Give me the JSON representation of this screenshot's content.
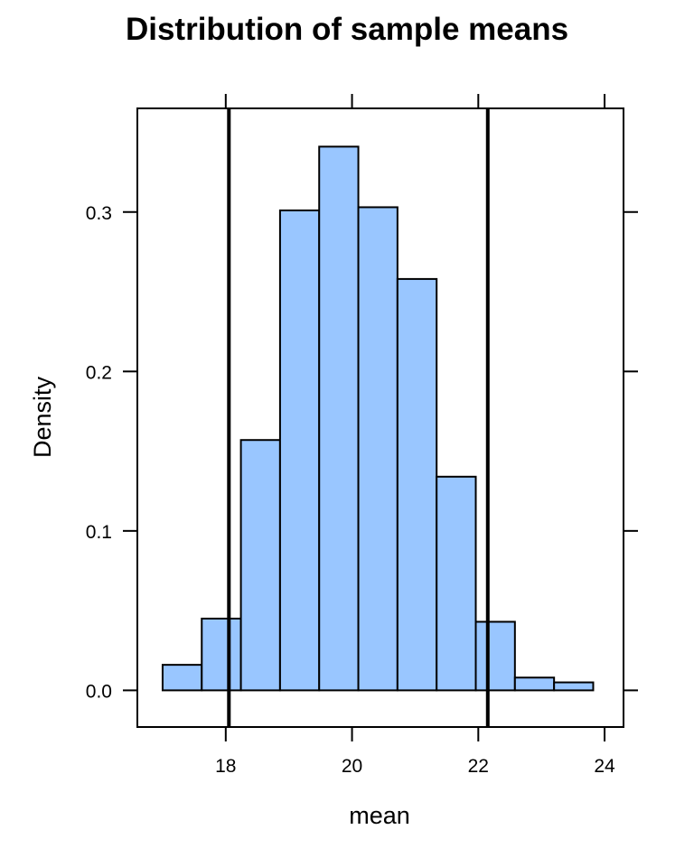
{
  "chart_data": {
    "type": "bar",
    "title": "Distribution of sample means",
    "xlabel": "mean",
    "ylabel": "Density",
    "xlim": [
      16.6,
      24.3
    ],
    "ylim": [
      -0.023,
      0.365
    ],
    "x_ticks": [
      18,
      20,
      22,
      24
    ],
    "y_ticks": [
      0.0,
      0.1,
      0.2,
      0.3
    ],
    "y_tick_labels": [
      "0.0",
      "0.1",
      "0.2",
      "0.3"
    ],
    "bins": [
      {
        "x0": 17.0,
        "x1": 17.62,
        "density": 0.016
      },
      {
        "x0": 17.62,
        "x1": 18.24,
        "density": 0.045
      },
      {
        "x0": 18.24,
        "x1": 18.86,
        "density": 0.157
      },
      {
        "x0": 18.86,
        "x1": 19.48,
        "density": 0.301
      },
      {
        "x0": 19.48,
        "x1": 20.1,
        "density": 0.341
      },
      {
        "x0": 20.1,
        "x1": 20.72,
        "density": 0.303
      },
      {
        "x0": 20.72,
        "x1": 21.34,
        "density": 0.258
      },
      {
        "x0": 21.34,
        "x1": 21.96,
        "density": 0.134
      },
      {
        "x0": 21.96,
        "x1": 22.58,
        "density": 0.043
      },
      {
        "x0": 22.58,
        "x1": 23.2,
        "density": 0.008
      },
      {
        "x0": 23.2,
        "x1": 23.82,
        "density": 0.005
      }
    ],
    "vertical_lines": [
      18.05,
      22.15
    ],
    "baseline": 0.0,
    "grid": false,
    "bar_color": "#99C6FF",
    "bar_edge_color": "#000000",
    "line_color": "#000000"
  }
}
